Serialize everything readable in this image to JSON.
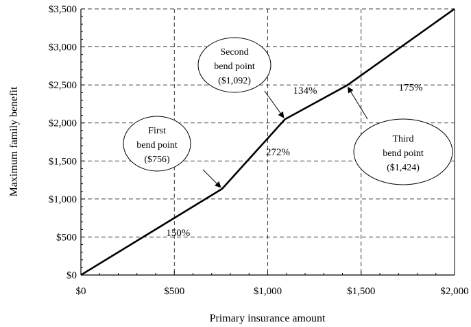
{
  "chart_data": {
    "type": "line",
    "xlabel": "Primary insurance amount",
    "ylabel": "Maximum family benefit",
    "xlim": [
      0,
      2000
    ],
    "ylim": [
      0,
      3500
    ],
    "x_ticks": [
      0,
      500,
      1000,
      1500,
      2000
    ],
    "y_ticks": [
      0,
      500,
      1000,
      1500,
      2000,
      2500,
      3000,
      3500
    ],
    "x_tick_labels": [
      "$0",
      "$500",
      "$1,000",
      "$1,500",
      "$2,000"
    ],
    "y_tick_labels": [
      "$0",
      "$500",
      "$1,000",
      "$1,500",
      "$2,000",
      "$2,500",
      "$3,000",
      "$3,500"
    ],
    "grid": true,
    "series": [
      {
        "x": [
          0,
          756,
          1092,
          1424,
          2000
        ],
        "y": [
          0,
          1134,
          2048,
          2493,
          3501
        ]
      }
    ],
    "segment_labels": [
      {
        "text": "150%",
        "x": 520,
        "y": 560
      },
      {
        "text": "272%",
        "x": 1055,
        "y": 1620
      },
      {
        "text": "134%",
        "x": 1200,
        "y": 2430
      },
      {
        "text": "175%",
        "x": 1765,
        "y": 2470
      }
    ],
    "callouts": [
      {
        "lines": [
          "First",
          "bend point",
          "($756)"
        ],
        "point": [
          756,
          1134
        ]
      },
      {
        "lines": [
          "Second",
          "bend point",
          "($1,092)"
        ],
        "point": [
          1092,
          2048
        ]
      },
      {
        "lines": [
          "Third",
          "bend point",
          "($1,424)"
        ],
        "point": [
          1424,
          2493
        ]
      }
    ],
    "line_color": "#000000"
  }
}
